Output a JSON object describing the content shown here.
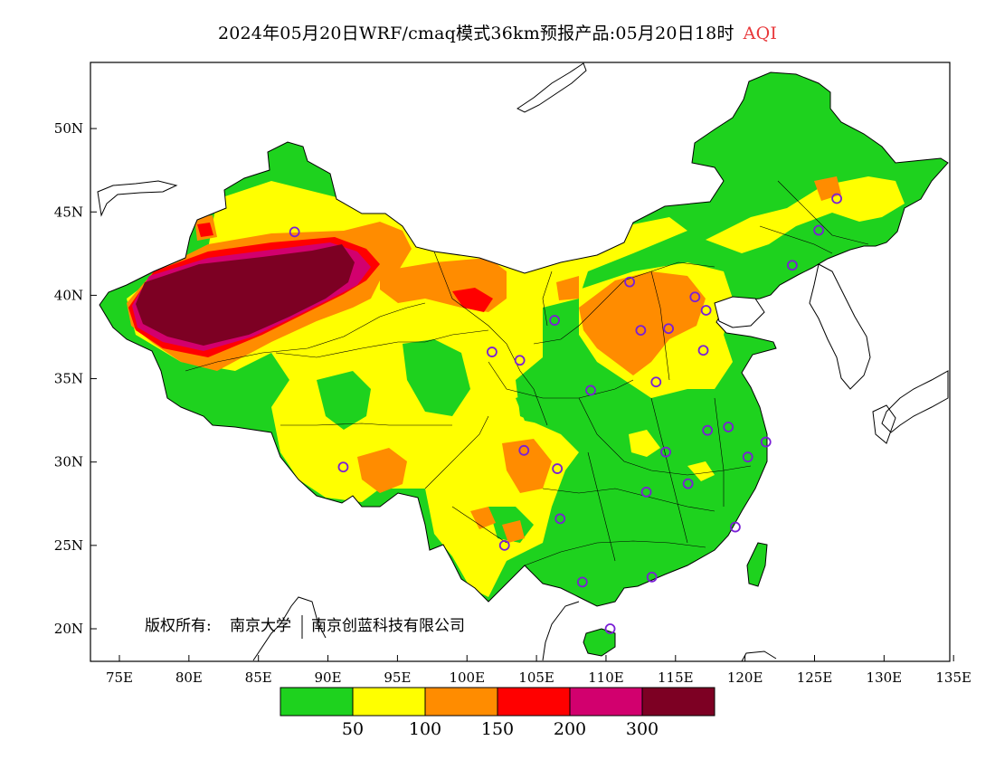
{
  "title": {
    "text": "2024年05月20日WRF/cmaq模式36km预报产品:05月20日18时",
    "variable": "AQI",
    "variable_color": "#e8383b"
  },
  "axes": {
    "x_ticks": [
      "75E",
      "80E",
      "85E",
      "90E",
      "95E",
      "100E",
      "105E",
      "110E",
      "115E",
      "120E",
      "125E",
      "130E",
      "135E"
    ],
    "x_values": [
      75,
      80,
      85,
      90,
      95,
      100,
      105,
      110,
      115,
      120,
      125,
      130,
      135
    ],
    "y_ticks": [
      "20N",
      "25N",
      "30N",
      "35N",
      "40N",
      "45N",
      "50N"
    ],
    "y_values": [
      20,
      25,
      30,
      35,
      40,
      45,
      50
    ],
    "lon_range": [
      73,
      135
    ],
    "lat_range": [
      18,
      54
    ]
  },
  "copyright": {
    "label": "版权所有:",
    "org1": "南京大学",
    "org2": "南京创蓝科技有限公司"
  },
  "legend": {
    "colors": [
      "#1ed21e",
      "#ffff00",
      "#ff8c00",
      "#ff0000",
      "#d2006e",
      "#7d0023"
    ],
    "labels": [
      "50",
      "100",
      "150",
      "200",
      "300"
    ]
  },
  "levels": {
    "good": "#1ed21e",
    "moderate": "#ffff00",
    "usg": "#ff8c00",
    "unhealthy": "#ff0000",
    "very_unhealthy": "#d2006e",
    "hazardous": "#7d0023"
  },
  "stations": [
    {
      "lon": 87.6,
      "lat": 43.8
    },
    {
      "lon": 91.1,
      "lat": 29.7
    },
    {
      "lon": 101.8,
      "lat": 36.6
    },
    {
      "lon": 103.8,
      "lat": 36.1
    },
    {
      "lon": 106.3,
      "lat": 38.5
    },
    {
      "lon": 111.7,
      "lat": 40.8
    },
    {
      "lon": 112.5,
      "lat": 37.9
    },
    {
      "lon": 114.5,
      "lat": 38.0
    },
    {
      "lon": 116.4,
      "lat": 39.9
    },
    {
      "lon": 117.2,
      "lat": 39.1
    },
    {
      "lon": 117.0,
      "lat": 36.7
    },
    {
      "lon": 113.6,
      "lat": 34.8
    },
    {
      "lon": 108.9,
      "lat": 34.3
    },
    {
      "lon": 104.1,
      "lat": 30.7
    },
    {
      "lon": 106.5,
      "lat": 29.6
    },
    {
      "lon": 106.7,
      "lat": 26.6
    },
    {
      "lon": 102.7,
      "lat": 25.0
    },
    {
      "lon": 108.3,
      "lat": 22.8
    },
    {
      "lon": 110.3,
      "lat": 20.0
    },
    {
      "lon": 113.3,
      "lat": 23.1
    },
    {
      "lon": 112.9,
      "lat": 28.2
    },
    {
      "lon": 115.9,
      "lat": 28.7
    },
    {
      "lon": 114.3,
      "lat": 30.6
    },
    {
      "lon": 117.3,
      "lat": 31.9
    },
    {
      "lon": 118.8,
      "lat": 32.1
    },
    {
      "lon": 120.2,
      "lat": 30.3
    },
    {
      "lon": 121.5,
      "lat": 31.2
    },
    {
      "lon": 119.3,
      "lat": 26.1
    },
    {
      "lon": 123.4,
      "lat": 41.8
    },
    {
      "lon": 125.3,
      "lat": 43.9
    },
    {
      "lon": 126.6,
      "lat": 45.8
    }
  ]
}
